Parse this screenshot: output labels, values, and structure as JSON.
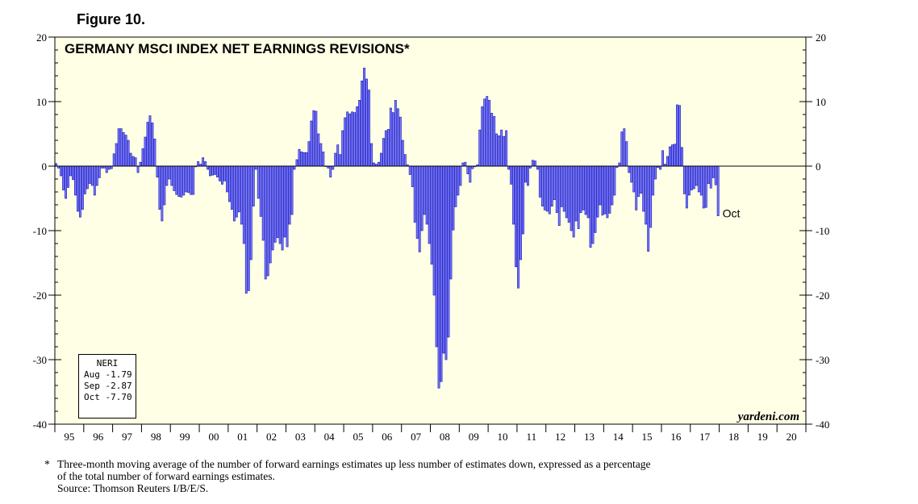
{
  "figure_label": "Figure 10.",
  "brand_label": "yardeni.com",
  "accent_colors": {
    "plot_bg": "#ffffe6",
    "bar_fill": "#7f7fff",
    "bar_stroke": "#1f1fbf"
  },
  "legend": {
    "title": "NERI",
    "rows": [
      "Aug -1.79",
      "Sep -2.87",
      "Oct -7.70"
    ]
  },
  "footnote": {
    "star": "*",
    "line1": "Three-month moving average of the number of forward earnings estimates up less number of estimates down, expressed as a percentage",
    "line2": "of the total number of forward earnings estimates.",
    "source": "Source: Thomson Reuters I/B/E/S."
  },
  "chart_data": {
    "type": "bar",
    "title": "GERMANY MSCI INDEX NET EARNINGS REVISIONS*",
    "xlabel": "",
    "ylabel": "",
    "ylim": [
      -40,
      20
    ],
    "y_ticks": [
      "20",
      "10",
      "0",
      "-10",
      "-20",
      "-30",
      "-40"
    ],
    "x_range": [
      1995.0,
      2021.0
    ],
    "x_tick_labels": [
      "95",
      "96",
      "97",
      "98",
      "99",
      "00",
      "01",
      "02",
      "03",
      "04",
      "05",
      "06",
      "07",
      "08",
      "09",
      "10",
      "11",
      "12",
      "13",
      "14",
      "15",
      "16",
      "17",
      "18",
      "19",
      "20"
    ],
    "end_annotation": "Oct",
    "grid": false,
    "x_start": 1995.0,
    "x_step_months": 1,
    "values": [
      0.4,
      -0.3,
      -1.5,
      -3.7,
      -5.0,
      -3.3,
      -1.5,
      -2.1,
      -4.5,
      -7.0,
      -7.9,
      -6.7,
      -4.3,
      -3.5,
      -2.7,
      -3.0,
      -4.5,
      -3.0,
      -1.8,
      -0.3,
      -0.3,
      -1.0,
      -0.5,
      -0.4,
      1.9,
      3.5,
      5.8,
      5.8,
      5.2,
      4.8,
      4.0,
      2.0,
      1.5,
      1.3,
      -1.0,
      0.6,
      2.7,
      4.5,
      6.8,
      7.8,
      6.7,
      4.2,
      -1.7,
      -6.7,
      -8.5,
      -6.0,
      -3.0,
      -2.0,
      -3.0,
      -3.8,
      -4.4,
      -4.7,
      -4.8,
      -4.5,
      -4.0,
      -4.1,
      -4.4,
      -4.4,
      -0.1,
      0.7,
      0.3,
      1.3,
      0.7,
      -0.5,
      -1.5,
      -1.4,
      -1.3,
      -1.7,
      -2.3,
      -2.8,
      -2.3,
      -4.0,
      -5.5,
      -6.7,
      -8.5,
      -7.9,
      -7.1,
      -9.0,
      -12.0,
      -19.7,
      -19.3,
      -14.5,
      -6.2,
      -0.5,
      -5.0,
      -7.8,
      -11.5,
      -17.5,
      -17.0,
      -15.0,
      -13.0,
      -11.8,
      -11.1,
      -12.0,
      -13.0,
      -11.0,
      -12.5,
      -9.0,
      -7.5,
      -0.5,
      1.0,
      2.6,
      2.2,
      2.1,
      2.1,
      3.8,
      7.0,
      8.6,
      8.5,
      5.0,
      3.5,
      2.2,
      0.0,
      -0.3,
      -1.7,
      -0.5,
      2.0,
      3.3,
      1.8,
      5.5,
      7.5,
      8.4,
      8.1,
      8.4,
      8.3,
      9.2,
      10.2,
      13.2,
      15.2,
      13.5,
      11.8,
      3.5,
      0.5,
      0.3,
      0.6,
      2.0,
      4.3,
      5.5,
      5.7,
      9.0,
      8.3,
      10.2,
      8.9,
      7.6,
      4.0,
      1.8,
      0.2,
      -1.3,
      -3.2,
      -8.7,
      -11.2,
      -13.3,
      -10.0,
      -7.5,
      -9.0,
      -12.0,
      -15.2,
      -20.0,
      -28.0,
      -34.4,
      -33.4,
      -29.0,
      -30.0,
      -26.5,
      -17.5,
      -9.9,
      -6.3,
      -4.5,
      -3.0,
      0.5,
      0.6,
      -1.2,
      -2.5,
      -0.4,
      -0.1,
      0.2,
      5.6,
      9.2,
      10.4,
      10.8,
      10.2,
      8.2,
      7.7,
      5.0,
      4.7,
      5.6,
      4.6,
      5.5,
      -0.5,
      -2.8,
      -9.0,
      -15.6,
      -18.9,
      -14.5,
      -10.5,
      -2.5,
      -3.0,
      -0.3,
      0.9,
      0.8,
      -0.5,
      -4.8,
      -6.2,
      -6.8,
      -7.0,
      -7.4,
      -6.2,
      -5.2,
      -7.2,
      -9.2,
      -6.3,
      -7.0,
      -8.0,
      -8.7,
      -10.0,
      -11.0,
      -8.5,
      -9.7,
      -7.2,
      -6.8,
      -7.5,
      -8.0,
      -12.6,
      -12.0,
      -10.3,
      -7.9,
      -6.0,
      -7.6,
      -7.4,
      -8.0,
      -7.3,
      -6.0,
      -4.5,
      -0.2,
      0.5,
      5.3,
      5.8,
      3.8,
      -1.0,
      -2.5,
      -4.0,
      -6.8,
      -4.7,
      -4.2,
      -7.0,
      -9.0,
      -13.2,
      -9.5,
      -4.5,
      -2.0,
      -0.2,
      -0.5,
      2.4,
      0.3,
      1.5,
      3.0,
      3.3,
      3.4,
      9.5,
      9.4,
      2.9,
      -4.3,
      -6.5,
      -4.5,
      -3.7,
      -3.5,
      -3.0,
      -4.0,
      -4.5,
      -6.5,
      -6.4,
      -2.7,
      -3.4,
      -1.8,
      -2.9,
      -7.7
    ]
  }
}
